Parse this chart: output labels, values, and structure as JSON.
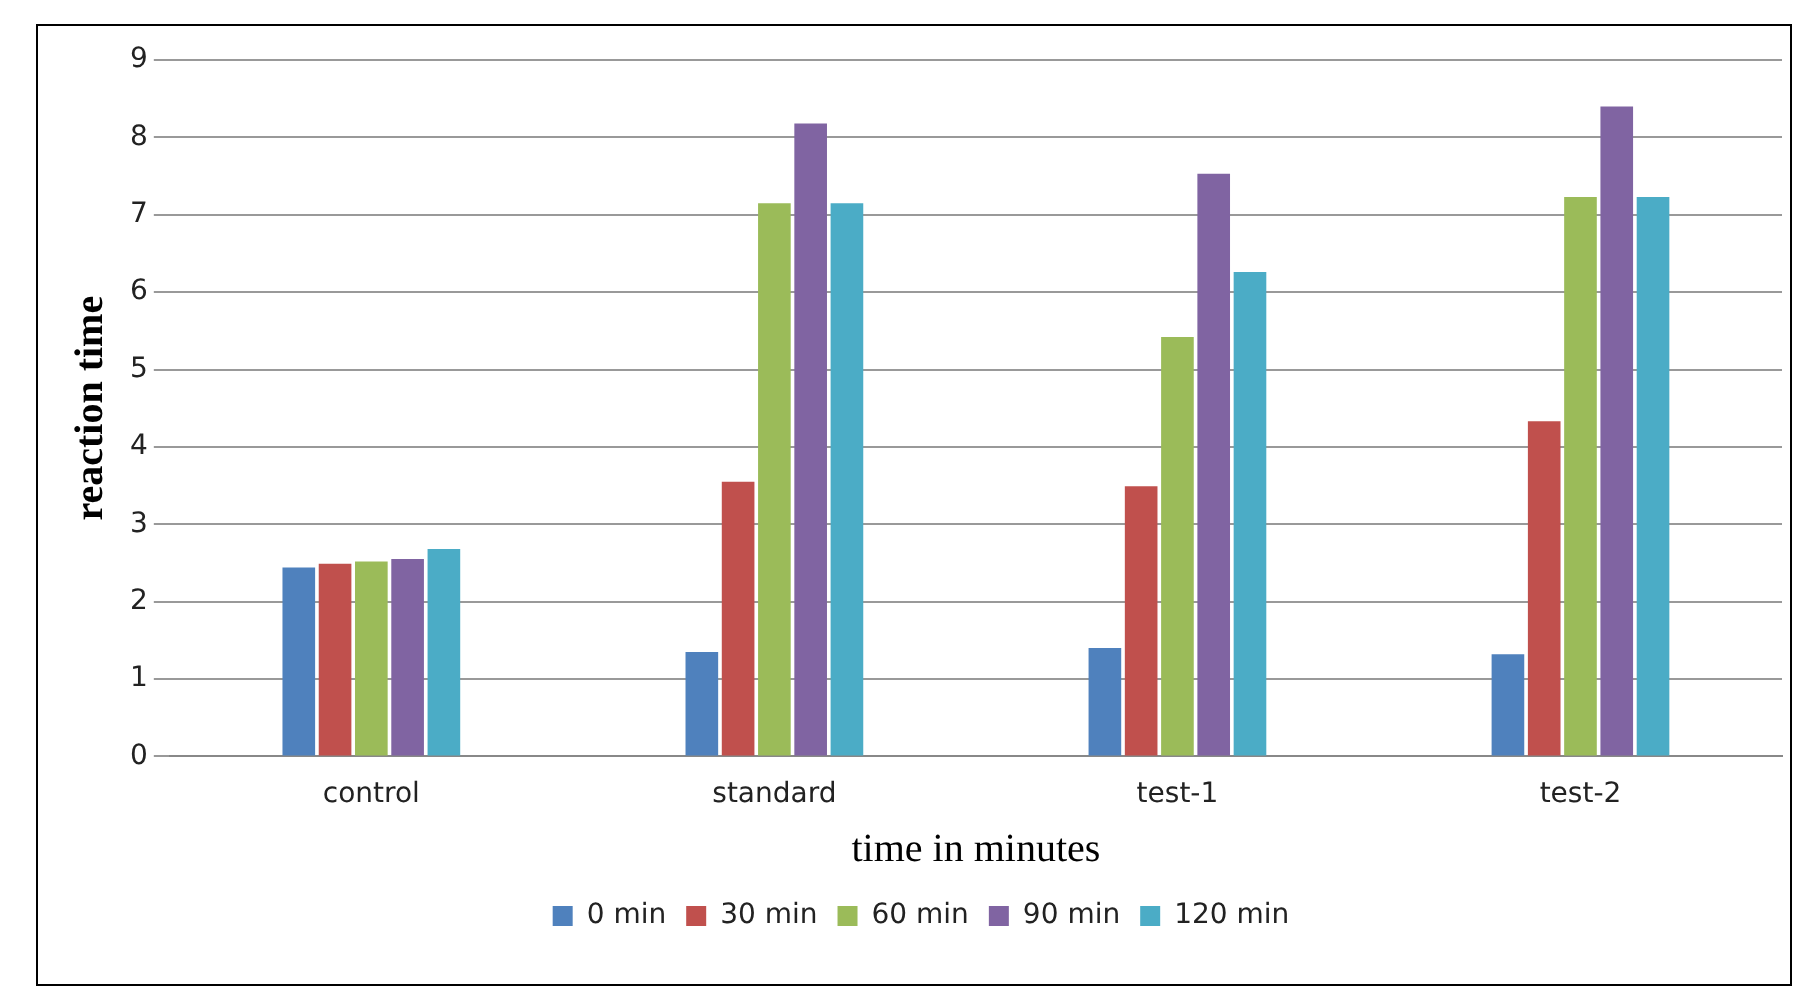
{
  "chart_data": {
    "type": "bar",
    "xlabel": "time in minutes",
    "ylabel": "reaction time",
    "categories": [
      "control",
      "standard",
      "test-1",
      "test-2"
    ],
    "series": [
      {
        "name": "0 min",
        "color": "#4f81bd",
        "values": [
          2.44,
          1.35,
          1.4,
          1.32
        ]
      },
      {
        "name": "30 min",
        "color": "#c0504d",
        "values": [
          2.49,
          3.55,
          3.49,
          4.33
        ]
      },
      {
        "name": "60 min",
        "color": "#9bbb59",
        "values": [
          2.52,
          7.15,
          5.42,
          7.23
        ]
      },
      {
        "name": "90 min",
        "color": "#8064a2",
        "values": [
          2.55,
          8.18,
          7.53,
          8.4
        ]
      },
      {
        "name": "120 min",
        "color": "#4bacc6",
        "values": [
          2.68,
          7.15,
          6.26,
          7.23
        ]
      }
    ],
    "ylim": [
      0,
      9
    ],
    "yticks": [
      0,
      1,
      2,
      3,
      4,
      5,
      6,
      7,
      8,
      9
    ],
    "grid": "y",
    "legend": "bottom"
  }
}
